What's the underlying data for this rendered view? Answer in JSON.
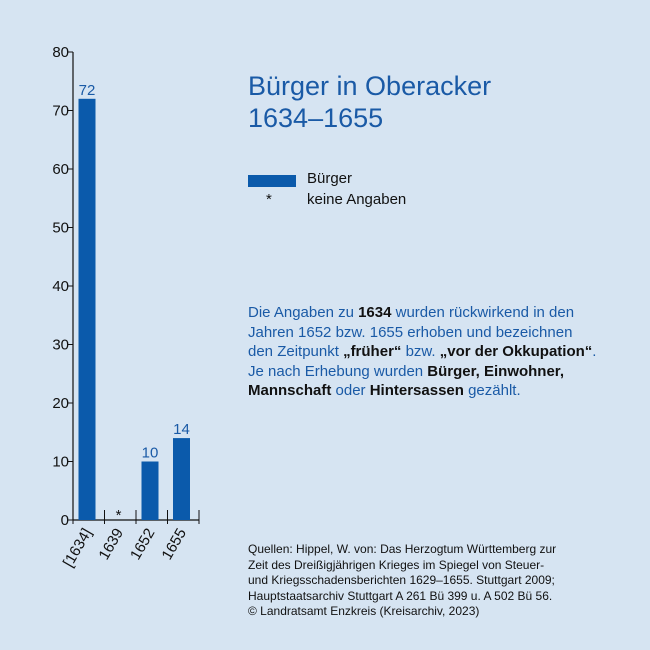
{
  "title": {
    "line1": "Bürger in Oberacker",
    "line2": "1634–1655"
  },
  "legend": [
    {
      "key": "bar",
      "label": "Bürger"
    },
    {
      "key": "star",
      "symbol": "*",
      "label": "keine Angaben"
    }
  ],
  "note": {
    "parts": [
      {
        "text": "Die Angaben zu ",
        "bold": false
      },
      {
        "text": "1634",
        "bold": true
      },
      {
        "text": " wurden rückwirkend in den Jahren 1652 bzw. 1655 erhoben und bezeichnen den Zeitpunkt ",
        "bold": false
      },
      {
        "text": "„früher“",
        "bold": true
      },
      {
        "text": " bzw. ",
        "bold": false
      },
      {
        "text": "„vor der Okkupation“",
        "bold": true
      },
      {
        "text": ". Je nach Erhebung wurden ",
        "bold": false
      },
      {
        "text": "Bürger, Einwohner, Mannschaft",
        "bold": true
      },
      {
        "text": " oder ",
        "bold": false
      },
      {
        "text": "Hintersassen",
        "bold": true
      },
      {
        "text": " gezählt.",
        "bold": false
      }
    ]
  },
  "sources": [
    "Quellen: Hippel, W. von: Das Herzogtum Württemberg zur",
    "Zeit des Dreißigjährigen Krieges im Spiegel von Steuer-",
    "und Kriegsschadensberichten 1629–1655. Stuttgart 2009;",
    "Hauptstaatsarchiv Stuttgart A 261 Bü 399 u. A 502 Bü 56.",
    "© Landratsamt Enzkreis (Kreisarchiv, 2023)"
  ],
  "colors": {
    "bar": "#0b5aab",
    "value_label": "#1a5aa6",
    "background": "#d6e4f2",
    "axis": "#111111"
  },
  "chart_data": {
    "type": "bar",
    "categories": [
      "[1634]",
      "1639",
      "1652",
      "1655"
    ],
    "values": [
      72,
      null,
      10,
      14
    ],
    "value_labels": [
      "72",
      "*",
      "10",
      "14"
    ],
    "ylim": [
      0,
      80
    ],
    "yticks": [
      0,
      10,
      20,
      30,
      40,
      50,
      60,
      70,
      80
    ],
    "grid": false
  }
}
